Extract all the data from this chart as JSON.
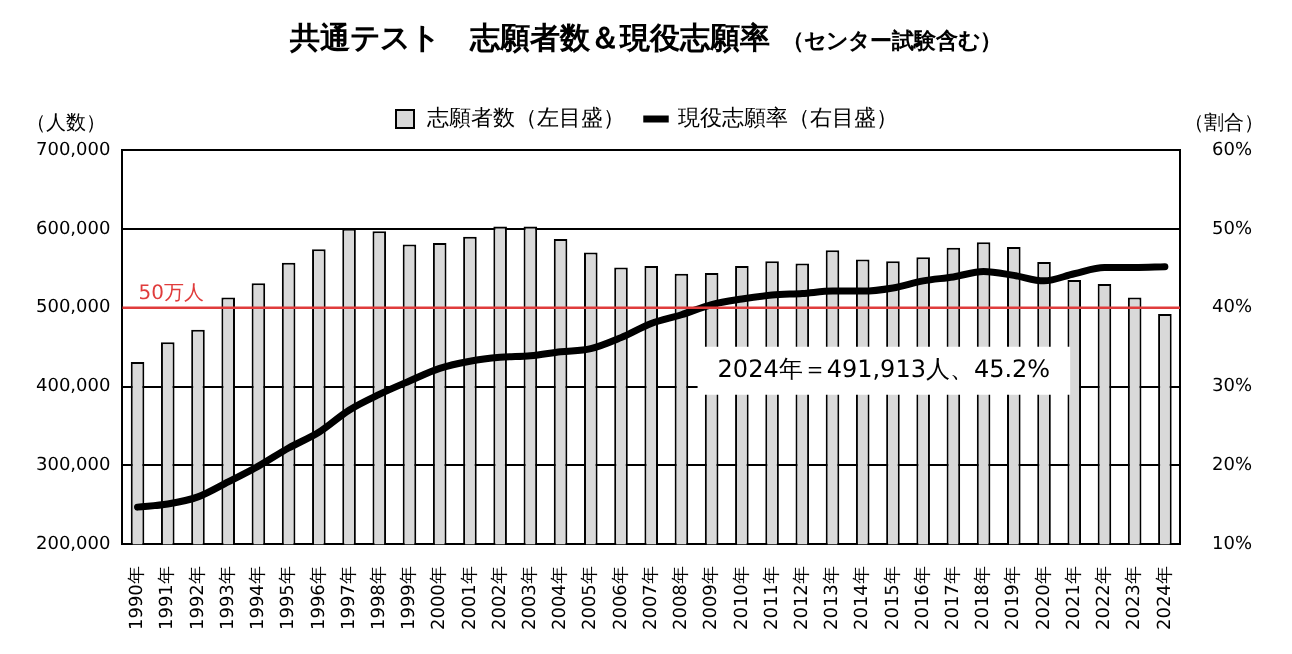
{
  "chart_data": {
    "type": "bar",
    "title": "共通テスト　志願者数＆現役志願率",
    "subtitle": "（センター試験含む）",
    "ylabel": "（人数）",
    "y2label": "（割合）",
    "categories": [
      "1990年",
      "1991年",
      "1992年",
      "1993年",
      "1994年",
      "1995年",
      "1996年",
      "1997年",
      "1998年",
      "1999年",
      "2000年",
      "2001年",
      "2002年",
      "2003年",
      "2004年",
      "2005年",
      "2006年",
      "2007年",
      "2008年",
      "2009年",
      "2010年",
      "2011年",
      "2012年",
      "2013年",
      "2014年",
      "2015年",
      "2016年",
      "2017年",
      "2018年",
      "2019年",
      "2020年",
      "2021年",
      "2022年",
      "2023年",
      "2024年"
    ],
    "series": [
      {
        "name": "志願者数（左目盛）",
        "color": "#d9d9d9",
        "values": [
          431000,
          456000,
          472000,
          513000,
          531000,
          557000,
          574000,
          600000,
          597000,
          580000,
          582000,
          590000,
          603000,
          603000,
          587000,
          570000,
          551000,
          553000,
          543000,
          544000,
          553000,
          559000,
          556000,
          573000,
          561000,
          559000,
          564000,
          576000,
          583000,
          577000,
          558000,
          535000,
          530000,
          513000,
          491913
        ]
      },
      {
        "name": "現役志願率（右目盛）",
        "type": "line",
        "axis": "y2",
        "color": "#000000",
        "values": [
          14.7,
          15.1,
          16.0,
          17.9,
          19.9,
          22.2,
          24.2,
          27.0,
          29.0,
          30.7,
          32.3,
          33.2,
          33.7,
          33.9,
          34.4,
          34.8,
          36.2,
          38.0,
          39.1,
          40.4,
          41.1,
          41.6,
          41.8,
          42.1,
          42.1,
          42.5,
          43.4,
          43.9,
          44.6,
          44.1,
          43.4,
          44.3,
          45.1,
          45.1,
          45.2
        ]
      }
    ],
    "ylim": [
      200000,
      700000
    ],
    "yticks": [
      {
        "value": 200000,
        "label": "200,000"
      },
      {
        "value": 300000,
        "label": "300,000"
      },
      {
        "value": 400000,
        "label": "400,000"
      },
      {
        "value": 500000,
        "label": "500,000"
      },
      {
        "value": 600000,
        "label": "600,000"
      },
      {
        "value": 700000,
        "label": "700,000"
      }
    ],
    "y2lim": [
      10,
      60
    ],
    "y2ticks": [
      {
        "value": 10,
        "label": "10%"
      },
      {
        "value": 20,
        "label": "20%"
      },
      {
        "value": 30,
        "label": "30%"
      },
      {
        "value": 40,
        "label": "40%"
      },
      {
        "value": 50,
        "label": "50%"
      },
      {
        "value": 60,
        "label": "60%"
      }
    ],
    "ref_lines": [
      {
        "axis": "y",
        "value": 500000,
        "label": "50万人",
        "color": "#e03c3c"
      }
    ],
    "annotations": [
      "2024年＝491,913人、45.2%"
    ],
    "grid": "y",
    "legend": "top",
    "marker": "none",
    "line_style": "solid"
  }
}
